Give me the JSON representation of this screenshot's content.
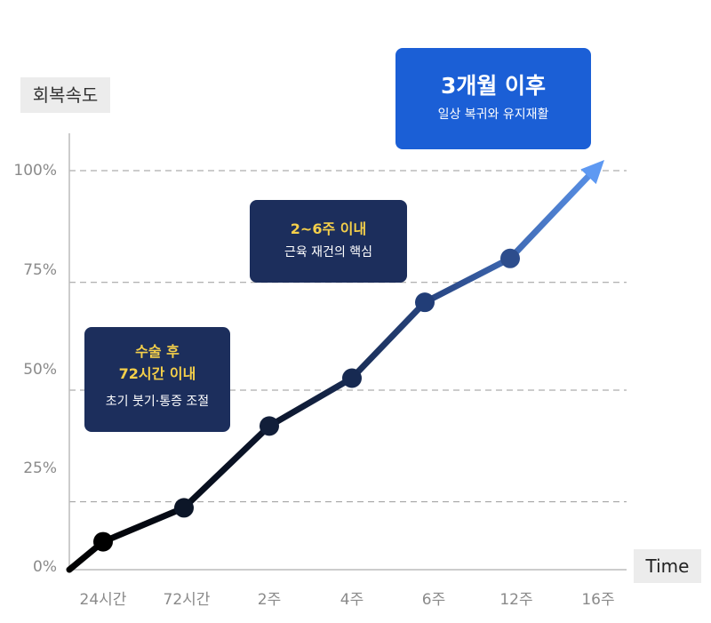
{
  "chart_data": {
    "type": "line",
    "categories": [
      "24시간",
      "72시간",
      "2주",
      "4주",
      "6주",
      "12주",
      "16주"
    ],
    "values": [
      7,
      15.5,
      36,
      48,
      67,
      78,
      100
    ],
    "origin_value": 0,
    "final_arrow_target": 100,
    "yticks": [
      "100%",
      "75%",
      "50%",
      "25%",
      "0%"
    ],
    "ylim": [
      0,
      100
    ],
    "xlabel": "Time",
    "ylabel": "회복속도",
    "grid": "dashed horizontal",
    "colors": {
      "start": "#000000",
      "end": "#5e99f2",
      "axis": "#bbbbbb",
      "grid": "#999999"
    }
  },
  "callouts": [
    {
      "title_line1": "수술 후",
      "title_line2": "72시간 이내",
      "subtitle": "초기 붓기·통증 조절"
    },
    {
      "title_line1": "2~6주 이내",
      "subtitle": "근육 재건의 핵심"
    },
    {
      "title_line1": "3개월 이후",
      "subtitle": "일상 복귀와 유지재활"
    }
  ]
}
